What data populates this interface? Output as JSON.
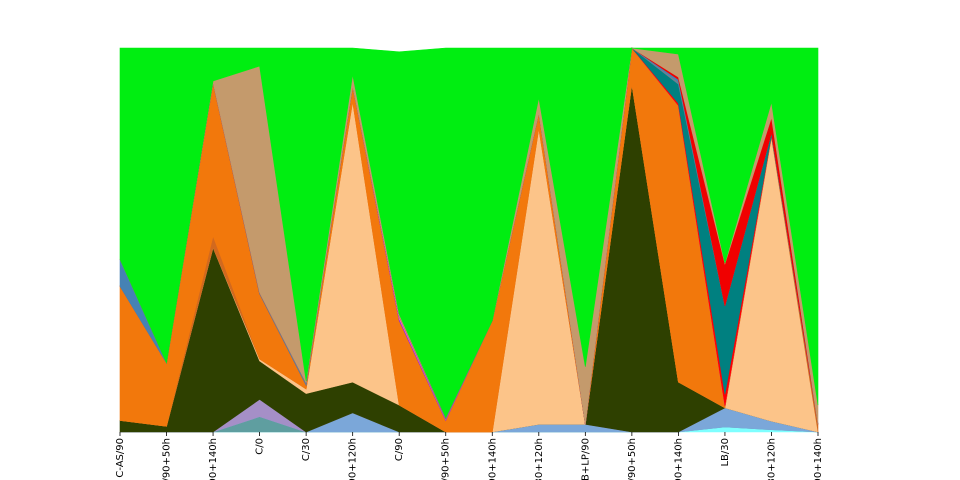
{
  "chart_data": {
    "type": "area",
    "stacked": true,
    "normalized": true,
    "title": "",
    "xlabel": "",
    "ylabel": "",
    "ylim": [
      0,
      1
    ],
    "grid": false,
    "legend": "none",
    "categories": [
      "C-AS/90",
      "/90+50h",
      "90+140h",
      "C/0",
      "C/30",
      "90+120h",
      "C/90",
      "/90+50h",
      "90+140h",
      "30+120h",
      "B+LP/90",
      "/90+50h",
      "90+140h",
      "LB/30",
      "30+120h",
      "90+140h"
    ],
    "series": [
      {
        "color": "#7fffff",
        "values": [
          0,
          0,
          0,
          0,
          0,
          0,
          0,
          0,
          0,
          0,
          0,
          0,
          0,
          0.013,
          0.006,
          0
        ]
      },
      {
        "color": "#5f9ea0",
        "values": [
          0,
          0,
          0,
          0.04,
          0,
          0,
          0,
          0,
          0,
          0,
          0,
          0,
          0,
          0,
          0,
          0
        ]
      },
      {
        "color": "#7ba7d9",
        "values": [
          0,
          0,
          0,
          0,
          0,
          0.05,
          0,
          0,
          0,
          0.02,
          0.02,
          0,
          0,
          0.05,
          0.022,
          0
        ]
      },
      {
        "color": "#a58fc7",
        "values": [
          0,
          0,
          0,
          0.045,
          0,
          0,
          0,
          0,
          0,
          0,
          0,
          0,
          0,
          0,
          0,
          0
        ]
      },
      {
        "color": "#2e4000",
        "values": [
          0.03,
          0.015,
          0.48,
          0.1,
          0.1,
          0.08,
          0.07,
          0,
          0,
          0,
          0,
          0.905,
          0.13,
          0,
          0,
          0
        ]
      },
      {
        "color": "#fcc489",
        "values": [
          0,
          0,
          0,
          0.005,
          0.012,
          0.73,
          0,
          0,
          0,
          0.77,
          0,
          0,
          0,
          0,
          0.74,
          0
        ]
      },
      {
        "color": "#d2691e",
        "values": [
          0,
          0,
          0.03,
          0,
          0,
          0,
          0,
          0,
          0,
          0,
          0,
          0,
          0,
          0,
          0,
          0.02
        ]
      },
      {
        "color": "#f2780c",
        "values": [
          0.35,
          0.165,
          0.4,
          0.17,
          0.01,
          0.04,
          0.22,
          0.03,
          0.29,
          0.04,
          0,
          0.095,
          0.72,
          0.005,
          0.005,
          0
        ]
      },
      {
        "color": "#8a2be2",
        "values": [
          0,
          0,
          0,
          0,
          0,
          0,
          0.005,
          0.002,
          0,
          0,
          0,
          0,
          0,
          0,
          0,
          0
        ]
      },
      {
        "color": "#ff69b4",
        "values": [
          0,
          0,
          0,
          0,
          0,
          0,
          0.006,
          0.002,
          0,
          0,
          0,
          0,
          0,
          0,
          0,
          0
        ]
      },
      {
        "color": "#ff0000",
        "values": [
          0,
          0,
          0,
          0,
          0,
          0,
          0,
          0,
          0,
          0,
          0,
          0,
          0.006,
          0.03,
          0,
          0
        ]
      },
      {
        "color": "#008080",
        "values": [
          0,
          0,
          0,
          0,
          0,
          0,
          0,
          0,
          0,
          0,
          0,
          0,
          0.05,
          0.23,
          0.006,
          0
        ]
      },
      {
        "color": "#708090",
        "values": [
          0,
          0,
          0,
          0.003,
          0.003,
          0,
          0,
          0.004,
          0,
          0,
          0,
          0,
          0.006,
          0,
          0,
          0
        ]
      },
      {
        "color": "#4682b4",
        "values": [
          0.07,
          0,
          0,
          0,
          0.003,
          0,
          0,
          0,
          0,
          0,
          0,
          0,
          0.006,
          0,
          0,
          0
        ]
      },
      {
        "color": "#f00000",
        "values": [
          0,
          0,
          0,
          0,
          0,
          0,
          0,
          0,
          0,
          0,
          0,
          0,
          0.006,
          0.11,
          0.04,
          0
        ]
      },
      {
        "color": "#c49a6c",
        "values": [
          0,
          0,
          0.004,
          0.59,
          0.005,
          0.03,
          0.006,
          0,
          0,
          0.04,
          0.15,
          0,
          0.06,
          0.002,
          0.04,
          0.05
        ]
      },
      {
        "color": "#00ee11",
        "values": [
          0.55,
          0.82,
          0.086,
          0.047,
          0.867,
          0.07,
          0.683,
          0.962,
          0.71,
          0.13,
          0.83,
          0,
          0.016,
          0.56,
          0.141,
          0.93
        ]
      }
    ]
  }
}
